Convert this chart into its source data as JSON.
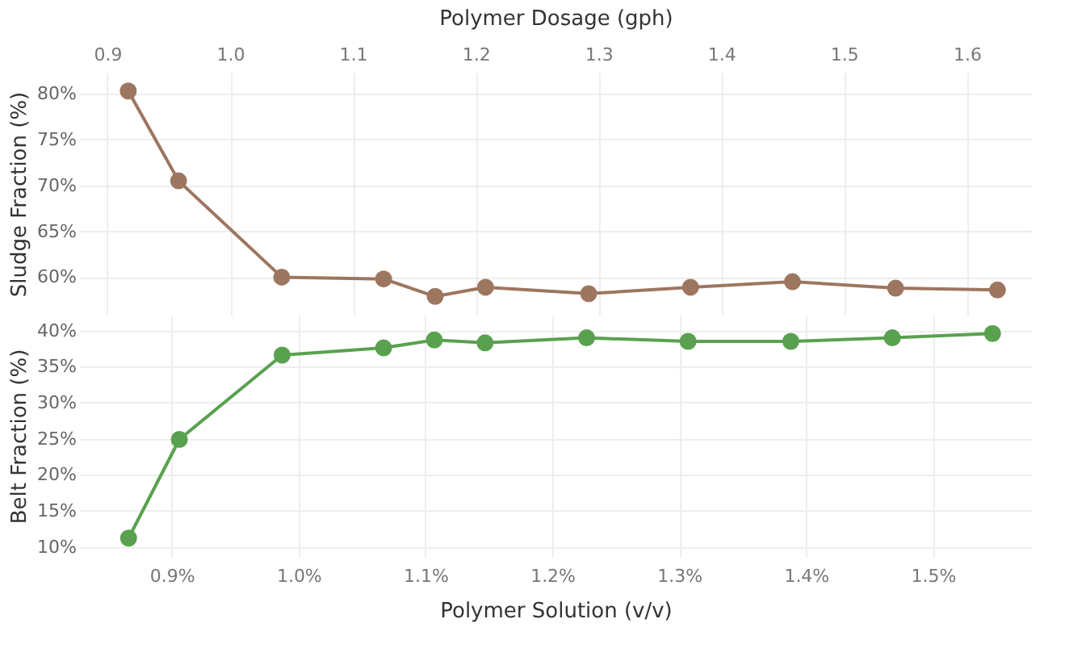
{
  "chart_data": [
    {
      "type": "line",
      "x2label": "Polymer Dosage (gph)",
      "ylabel": "Sludge Fraction (%)",
      "x2lim": [
        0.877,
        1.653
      ],
      "x2ticks": [
        0.9,
        {
          "value": 1.0,
          "label": "1.0"
        },
        1.1,
        1.2,
        1.3,
        1.4,
        1.5,
        1.6
      ],
      "ylim": [
        55.9,
        82.3
      ],
      "yticks": [
        {
          "value": 60,
          "label": "60%"
        },
        {
          "value": 65,
          "label": "65%"
        },
        {
          "value": 70,
          "label": "70%"
        },
        {
          "value": 75,
          "label": "75%"
        },
        {
          "value": 80,
          "label": "80%"
        }
      ],
      "x": [
        0.917,
        0.958,
        1.042,
        1.125,
        1.167,
        1.208,
        1.292,
        1.375,
        1.458,
        1.542,
        1.625
      ],
      "series": [
        {
          "color": "#9d7660",
          "axis": "x2",
          "values": [
            80.3,
            70.5,
            60.0,
            59.8,
            57.9,
            58.9,
            58.2,
            58.9,
            59.5,
            58.8,
            58.6
          ]
        }
      ],
      "marker": "circle",
      "line_style": "solid",
      "grid": true,
      "legend": false
    },
    {
      "type": "line",
      "xlabel": "Polymer Solution (v/v)",
      "ylabel": "Belt Fraction (%)",
      "xlim": [
        0.827,
        1.578
      ],
      "xticks": [
        {
          "value": 0.9,
          "label": "0.9%"
        },
        {
          "value": 1.0,
          "label": "1.0%"
        },
        {
          "value": 1.1,
          "label": "1.1%"
        },
        {
          "value": 1.2,
          "label": "1.2%"
        },
        {
          "value": 1.3,
          "label": "1.3%"
        },
        {
          "value": 1.4,
          "label": "1.4%"
        },
        {
          "value": 1.5,
          "label": "1.5%"
        }
      ],
      "ylim": [
        8.6,
        42.2
      ],
      "yticks": [
        {
          "value": 10,
          "label": "10%"
        },
        {
          "value": 15,
          "label": "15%"
        },
        {
          "value": 20,
          "label": "20%"
        },
        {
          "value": 25,
          "label": "25%"
        },
        {
          "value": 30,
          "label": "30%"
        },
        {
          "value": 35,
          "label": "35%"
        },
        {
          "value": 40,
          "label": "40%"
        }
      ],
      "x": [
        0.866,
        0.906,
        0.987,
        1.067,
        1.107,
        1.147,
        1.227,
        1.307,
        1.388,
        1.468,
        1.547
      ],
      "series": [
        {
          "color": "#59a14f",
          "values": [
            11.2,
            24.9,
            36.6,
            37.6,
            38.7,
            38.3,
            39.0,
            38.5,
            38.5,
            39.0,
            39.6
          ]
        }
      ],
      "marker": "circle",
      "line_style": "solid",
      "grid": true,
      "legend": false
    }
  ]
}
